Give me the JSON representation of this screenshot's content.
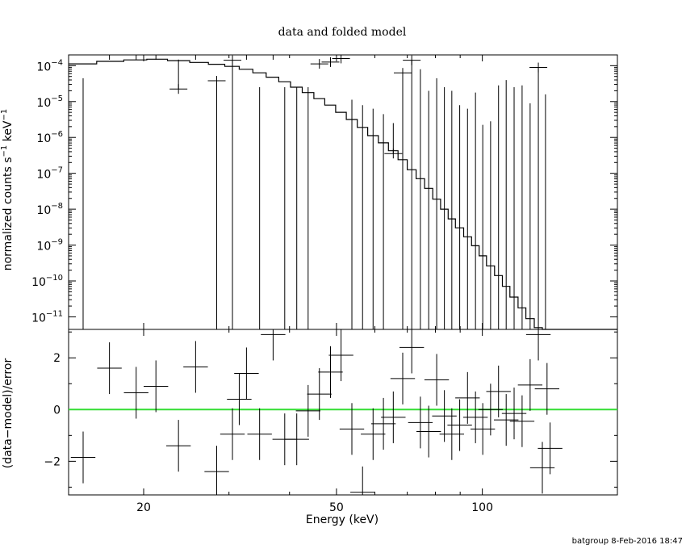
{
  "chart_data": {
    "type": "scatter",
    "title": "data and folded model",
    "xlabel": "Energy (keV)",
    "xscale": "log",
    "xlim": [
      14,
      190
    ],
    "xticks": [
      {
        "v": 20,
        "label": "20"
      },
      {
        "v": 50,
        "label": "50"
      },
      {
        "v": 100,
        "label": "100"
      }
    ],
    "footer": "batgroup  8-Feb-2016 18:47",
    "top_panel": {
      "ylabel_parts": [
        "normalized counts s",
        "−1",
        " keV",
        "−1"
      ],
      "yscale": "log",
      "ylim_exp": [
        -11.35,
        -3.7
      ],
      "yticks": [
        {
          "e": -4,
          "base": "10",
          "exp": "−4"
        },
        {
          "e": -5,
          "base": "10",
          "exp": "−5"
        },
        {
          "e": -6,
          "base": "10",
          "exp": "−6"
        },
        {
          "e": -7,
          "base": "10",
          "exp": "−7"
        },
        {
          "e": -8,
          "base": "10",
          "exp": "−8"
        },
        {
          "e": -9,
          "base": "10",
          "exp": "−9"
        },
        {
          "e": -10,
          "base": "10",
          "exp": "−10"
        },
        {
          "e": -11,
          "base": "10",
          "exp": "−11"
        }
      ],
      "model_color": "#000000",
      "model_step": [
        [
          14.0,
          16.0,
          -3.95
        ],
        [
          16.0,
          18.2,
          -3.88
        ],
        [
          18.2,
          20.3,
          -3.84
        ],
        [
          20.3,
          22.4,
          -3.82
        ],
        [
          22.4,
          24.9,
          -3.86
        ],
        [
          24.9,
          27.2,
          -3.91
        ],
        [
          27.2,
          29.4,
          -3.96
        ],
        [
          29.4,
          31.5,
          -4.02
        ],
        [
          31.5,
          33.6,
          -4.1
        ],
        [
          33.6,
          35.8,
          -4.2
        ],
        [
          35.8,
          38.0,
          -4.32
        ],
        [
          38.0,
          40.2,
          -4.45
        ],
        [
          40.2,
          42.5,
          -4.6
        ],
        [
          42.5,
          44.9,
          -4.75
        ],
        [
          44.9,
          47.3,
          -4.92
        ],
        [
          47.3,
          49.8,
          -5.1
        ],
        [
          49.8,
          52.4,
          -5.3
        ],
        [
          52.4,
          55.2,
          -5.5
        ],
        [
          55.2,
          58.0,
          -5.72
        ],
        [
          58.0,
          61.0,
          -5.95
        ],
        [
          61.0,
          64.0,
          -6.15
        ],
        [
          64.0,
          67.0,
          -6.37
        ],
        [
          67.0,
          70.0,
          -6.62
        ],
        [
          70.0,
          73.0,
          -6.9
        ],
        [
          73.0,
          76.0,
          -7.15
        ],
        [
          76.0,
          79.0,
          -7.42
        ],
        [
          79.0,
          82.0,
          -7.72
        ],
        [
          82.0,
          85.0,
          -8.0
        ],
        [
          85.0,
          88.0,
          -8.27
        ],
        [
          88.0,
          91.5,
          -8.52
        ],
        [
          91.5,
          95.0,
          -8.77
        ],
        [
          95.0,
          98.5,
          -9.02
        ],
        [
          98.5,
          102.0,
          -9.3
        ],
        [
          102.0,
          106.0,
          -9.58
        ],
        [
          106.0,
          110.0,
          -9.85
        ],
        [
          110.0,
          114.0,
          -10.15
        ],
        [
          114.0,
          118.5,
          -10.45
        ],
        [
          118.5,
          123.0,
          -10.75
        ],
        [
          123.0,
          128.0,
          -11.05
        ],
        [
          128.0,
          133.0,
          -11.3
        ],
        [
          133.0,
          190.0,
          -11.6
        ]
      ],
      "points": [
        [
          15.0,
          0.8,
          -11.35,
          -4.35
        ],
        [
          17.0,
          1.0,
          -3.6,
          -3.6
        ],
        [
          19.3,
          1.0,
          -3.6,
          -3.6
        ],
        [
          21.2,
          1.0,
          -3.65,
          -3.65
        ],
        [
          23.6,
          1.0,
          -4.65,
          -3.83
        ],
        [
          25.6,
          1.0,
          -3.6,
          -3.6
        ],
        [
          28.3,
          1.0,
          -11.35,
          -4.42
        ],
        [
          30.5,
          1.0,
          -11.35,
          -3.85
        ],
        [
          32.6,
          1.0,
          -3.7,
          -3.7
        ],
        [
          34.7,
          1.0,
          -11.35,
          -4.6
        ],
        [
          37.0,
          1.0,
          -3.62,
          -3.62
        ],
        [
          39.1,
          1.0,
          -11.35,
          -4.6
        ],
        [
          41.4,
          1.0,
          -11.35,
          -4.6
        ],
        [
          43.7,
          1.0,
          -11.35,
          -4.6
        ],
        [
          46.1,
          1.0,
          -3.95,
          -3.95
        ],
        [
          48.6,
          1.0,
          -3.9,
          -3.9
        ],
        [
          51.1,
          1.0,
          -3.8,
          -3.8
        ],
        [
          53.8,
          1.0,
          -11.35,
          -4.95
        ],
        [
          56.6,
          1.0,
          -11.35,
          -5.1
        ],
        [
          59.5,
          1.0,
          -11.35,
          -5.2
        ],
        [
          62.5,
          1.0,
          -11.35,
          -5.35
        ],
        [
          65.5,
          1.0,
          -6.45,
          -5.6
        ],
        [
          68.5,
          1.0,
          -11.35,
          -4.2
        ],
        [
          71.5,
          1.0,
          -11.35,
          -3.85
        ],
        [
          74.5,
          1.0,
          -11.35,
          -4.1
        ],
        [
          77.5,
          1.0,
          -11.35,
          -4.7
        ],
        [
          80.5,
          1.0,
          -11.35,
          -4.35
        ],
        [
          83.5,
          1.0,
          -11.35,
          -4.6
        ],
        [
          86.5,
          1.0,
          -11.35,
          -4.7
        ],
        [
          89.8,
          1.0,
          -11.35,
          -5.1
        ],
        [
          93.2,
          1.0,
          -11.35,
          -5.2
        ],
        [
          96.8,
          1.0,
          -11.35,
          -4.75
        ],
        [
          100.2,
          1.0,
          -11.35,
          -5.65
        ],
        [
          104.0,
          1.0,
          -11.35,
          -5.55
        ],
        [
          108.0,
          1.0,
          -11.35,
          -4.55
        ],
        [
          112.0,
          1.0,
          -11.35,
          -4.4
        ],
        [
          116.3,
          1.0,
          -11.35,
          -4.6
        ],
        [
          120.8,
          1.0,
          -11.35,
          -4.55
        ],
        [
          125.5,
          1.0,
          -11.35,
          -5.05
        ],
        [
          130.5,
          1.0,
          -11.35,
          -4.05
        ],
        [
          135.0,
          1.0,
          -11.35,
          -4.8
        ]
      ],
      "point_markers": [
        [
          17.0,
          -3.45
        ],
        [
          19.3,
          -3.5
        ],
        [
          21.2,
          -3.55
        ],
        [
          23.6,
          -4.65
        ],
        [
          25.6,
          -3.5
        ],
        [
          28.3,
          -4.42
        ],
        [
          30.5,
          -3.85
        ],
        [
          32.6,
          -3.7
        ],
        [
          37.0,
          -3.62
        ],
        [
          46.1,
          -3.95
        ],
        [
          48.6,
          -3.9
        ],
        [
          51.1,
          -3.8
        ],
        [
          65.5,
          -6.45
        ],
        [
          68.5,
          -4.2
        ],
        [
          71.5,
          -3.85
        ],
        [
          130.5,
          -4.05
        ]
      ]
    },
    "bottom_panel": {
      "ylabel": "(data−model)/error",
      "ylim": [
        -3.3,
        3.1
      ],
      "yticks": [
        {
          "v": 2,
          "label": "2"
        },
        {
          "v": 0,
          "label": "0"
        },
        {
          "v": -2,
          "label": "−2"
        }
      ],
      "zero_line_color": "#33dd33",
      "residuals": [
        [
          15.0,
          1.0,
          -1.85
        ],
        [
          17.0,
          1.0,
          1.6
        ],
        [
          19.3,
          1.0,
          0.65
        ],
        [
          21.2,
          1.0,
          0.9
        ],
        [
          23.6,
          1.0,
          -1.4
        ],
        [
          25.6,
          1.0,
          1.65
        ],
        [
          28.3,
          1.0,
          -2.4
        ],
        [
          30.5,
          1.0,
          -0.95
        ],
        [
          31.5,
          1.0,
          0.4
        ],
        [
          32.6,
          1.0,
          1.4
        ],
        [
          34.7,
          1.0,
          -0.95
        ],
        [
          37.0,
          1.0,
          2.9
        ],
        [
          39.1,
          1.0,
          -1.15
        ],
        [
          41.4,
          1.0,
          -1.15
        ],
        [
          43.7,
          1.0,
          -0.05
        ],
        [
          46.1,
          1.0,
          0.6
        ],
        [
          48.6,
          1.0,
          1.45
        ],
        [
          51.1,
          1.0,
          2.1
        ],
        [
          53.8,
          1.0,
          -0.75
        ],
        [
          56.6,
          1.0,
          -3.2
        ],
        [
          59.5,
          1.0,
          -0.95
        ],
        [
          62.5,
          1.0,
          -0.55
        ],
        [
          65.5,
          1.0,
          -0.3
        ],
        [
          68.5,
          1.0,
          1.2
        ],
        [
          71.5,
          1.0,
          2.4
        ],
        [
          74.5,
          1.0,
          -0.5
        ],
        [
          77.5,
          1.0,
          -0.85
        ],
        [
          80.5,
          1.0,
          1.15
        ],
        [
          83.5,
          1.0,
          -0.25
        ],
        [
          86.5,
          1.0,
          -0.95
        ],
        [
          89.8,
          1.0,
          -0.6
        ],
        [
          93.2,
          1.0,
          0.45
        ],
        [
          96.8,
          1.0,
          -0.3
        ],
        [
          100.2,
          1.0,
          -0.75
        ],
        [
          104.0,
          1.0,
          0.0
        ],
        [
          108.0,
          1.0,
          0.7
        ],
        [
          112.0,
          1.0,
          -0.4
        ],
        [
          116.3,
          1.0,
          -0.15
        ],
        [
          120.8,
          1.0,
          -0.45
        ],
        [
          125.5,
          1.0,
          0.95
        ],
        [
          130.5,
          1.0,
          2.9
        ],
        [
          133.0,
          1.0,
          -2.25
        ],
        [
          136.0,
          1.0,
          0.8
        ],
        [
          138.0,
          1.0,
          -1.5
        ]
      ]
    }
  }
}
